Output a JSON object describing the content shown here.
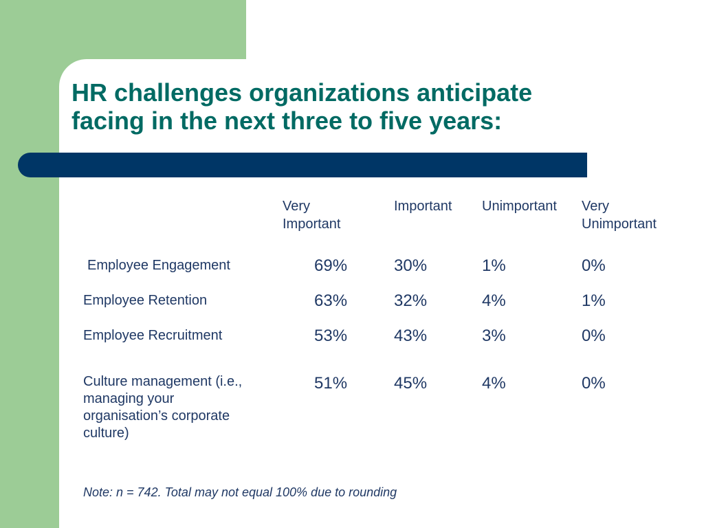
{
  "slide": {
    "title_lines": [
      "HR challenges organizations anticipate",
      "facing in the next three to five years:"
    ]
  },
  "table": {
    "headers": [
      [
        "Very",
        "Important"
      ],
      [
        "Important"
      ],
      [
        "Unimportant"
      ],
      [
        "Very",
        "Unimportant"
      ]
    ],
    "rows": [
      {
        "label_lines": [
          "Employee Engagement"
        ],
        "values": [
          "69%",
          "30%",
          "1%",
          "0%"
        ]
      },
      {
        "label_lines": [
          "Employee Retention"
        ],
        "values": [
          "63%",
          "32%",
          "4%",
          "1%"
        ]
      },
      {
        "label_lines": [
          "Employee Recruitment"
        ],
        "values": [
          "53%",
          "43%",
          "3%",
          "0%"
        ]
      },
      {
        "label_lines": [
          "Culture management (i.e.,",
          "managing your",
          "organisation’s corporate",
          "culture)"
        ],
        "values": [
          "51%",
          "45%",
          "4%",
          "0%"
        ]
      }
    ]
  },
  "note": "Note: n = 742. Total may not equal 100% due to rounding",
  "colors": {
    "title": "#006a63",
    "bar": "#003666",
    "side_block": "#9ccc96",
    "text": "#1f3864"
  }
}
